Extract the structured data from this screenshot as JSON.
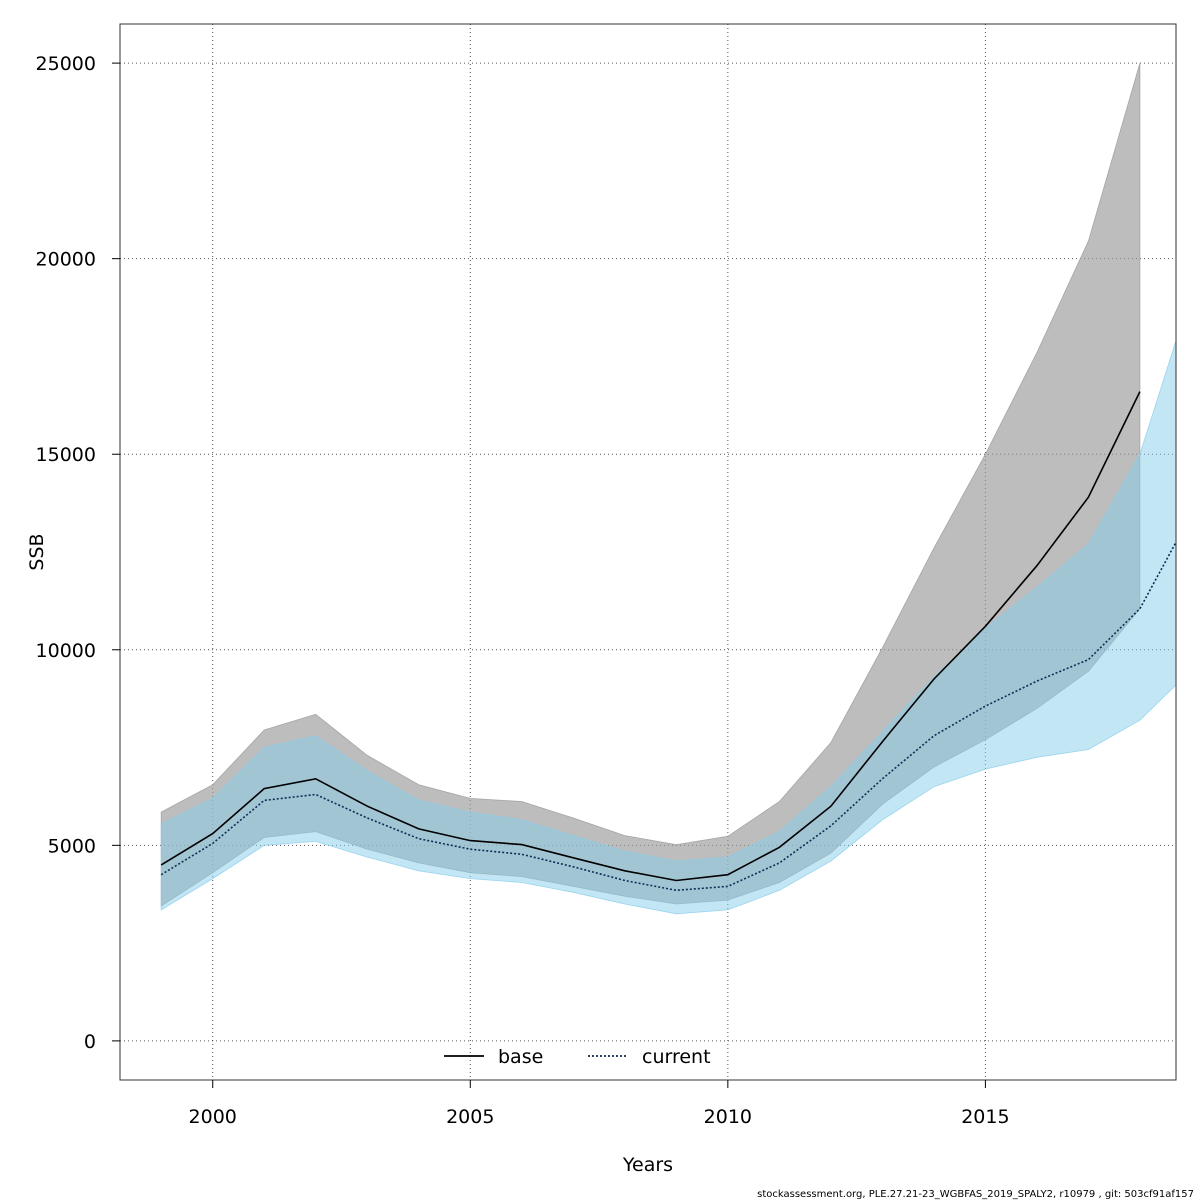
{
  "chart_data": {
    "type": "area",
    "title": "",
    "xlabel": "Years",
    "ylabel": "SSB",
    "xlim": [
      1998.2,
      2018.7
    ],
    "ylim": [
      -1000,
      26000
    ],
    "x_ticks": [
      2000,
      2005,
      2010,
      2015
    ],
    "y_ticks": [
      0,
      5000,
      10000,
      15000,
      20000,
      25000
    ],
    "x_tick_labels": [
      "2000",
      "2005",
      "2010",
      "2015"
    ],
    "y_tick_labels": [
      "0",
      "5000",
      "10000",
      "15000",
      "20000",
      "25000"
    ],
    "grid": true,
    "legend": {
      "position": "bottom-center",
      "entries": [
        "base",
        "current"
      ]
    },
    "series": [
      {
        "name": "base",
        "line_style": "solid",
        "line_color": "#000000",
        "band_color": "#999999",
        "x": [
          1999,
          2000,
          2001,
          2002,
          2003,
          2004,
          2005,
          2006,
          2007,
          2008,
          2009,
          2010,
          2011,
          2012,
          2013,
          2014,
          2015,
          2016,
          2017,
          2018
        ],
        "values": [
          4500,
          5300,
          6450,
          6700,
          6000,
          5420,
          5120,
          5020,
          4680,
          4350,
          4100,
          4250,
          4950,
          6000,
          7650,
          9250,
          10600,
          12150,
          13900,
          16600
        ],
        "lower": [
          3450,
          4300,
          5200,
          5350,
          4900,
          4550,
          4300,
          4200,
          3950,
          3700,
          3500,
          3600,
          4050,
          4800,
          6050,
          7000,
          7700,
          8500,
          9450,
          11050
        ],
        "upper": [
          5850,
          6550,
          7950,
          8350,
          7300,
          6550,
          6200,
          6120,
          5700,
          5250,
          5020,
          5230,
          6120,
          7630,
          10050,
          12600,
          15000,
          17600,
          20450,
          25000
        ]
      },
      {
        "name": "current",
        "line_style": "dotted",
        "line_color": "#0b2e55",
        "band_color": "#87ceeb",
        "x": [
          1999,
          2000,
          2001,
          2002,
          2003,
          2004,
          2005,
          2006,
          2007,
          2008,
          2009,
          2010,
          2011,
          2012,
          2013,
          2014,
          2015,
          2016,
          2017,
          2018,
          2018.7
        ],
        "values": [
          4250,
          5050,
          6150,
          6300,
          5700,
          5170,
          4900,
          4770,
          4450,
          4100,
          3850,
          3950,
          4550,
          5500,
          6700,
          7800,
          8560,
          9200,
          9750,
          11050,
          12750
        ],
        "lower": [
          3350,
          4150,
          5000,
          5100,
          4700,
          4350,
          4150,
          4050,
          3800,
          3500,
          3250,
          3350,
          3850,
          4600,
          5650,
          6500,
          6950,
          7250,
          7450,
          8200,
          9100
        ],
        "upper": [
          5550,
          6200,
          7500,
          7800,
          6900,
          6150,
          5850,
          5650,
          5250,
          4850,
          4600,
          4700,
          5350,
          6500,
          7900,
          9300,
          10550,
          11600,
          12700,
          15000,
          17900
        ]
      }
    ],
    "footer": "stockassessment.org, PLE.27.21-23_WGBFAS_2019_SPALY2, r10979 , git: 503cf91af157"
  }
}
